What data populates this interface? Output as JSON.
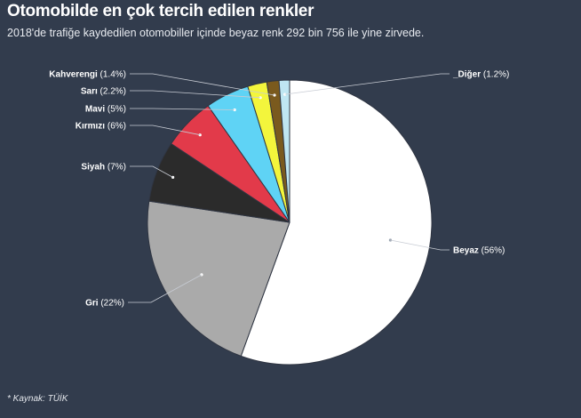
{
  "header": {
    "title": "Otomobilde en çok tercih edilen renkler",
    "subtitle": "2018'de trafiğe kaydedilen otomobiller içinde beyaz renk 292 bin 756 ile yine zirvede."
  },
  "source": "* Kaynak: TÜİK",
  "chart_data": {
    "type": "pie",
    "title": "Otomobilde en çok tercih edilen renkler",
    "slices": [
      {
        "label": "Beyaz",
        "value": 56,
        "display": "(56%)",
        "color": "#ffffff"
      },
      {
        "label": "Gri",
        "value": 22,
        "display": "(22%)",
        "color": "#aaaaaa"
      },
      {
        "label": "Siyah",
        "value": 7,
        "display": "(7%)",
        "color": "#2b2b2b"
      },
      {
        "label": "Kırmızı",
        "value": 6,
        "display": "(6%)",
        "color": "#e23a4a"
      },
      {
        "label": "Mavi",
        "value": 5,
        "display": "(5%)",
        "color": "#5fd3f5"
      },
      {
        "label": "Sarı",
        "value": 2.2,
        "display": "(2.2%)",
        "color": "#f3f53c"
      },
      {
        "label": "Kahverengi",
        "value": 1.4,
        "display": "(1.4%)",
        "color": "#7a5a1e"
      },
      {
        "label": "_Diğer",
        "value": 1.2,
        "display": "(1.2%)",
        "color": "#bfe6f2"
      }
    ]
  }
}
